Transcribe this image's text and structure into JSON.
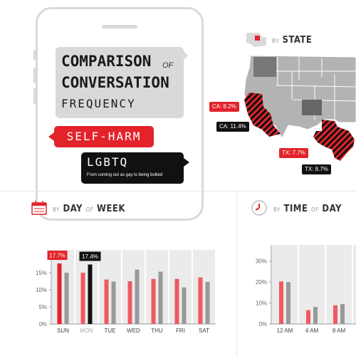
{
  "infographic": {
    "title_line1": "COMPARISON",
    "title_of": "OF",
    "title_line2": "CONVERSATION",
    "title_line3": "FREQUENCY",
    "selfharm_label": "SELF-HARM",
    "lgbtq_label": "LGBTQ",
    "lgbtq_sub": "From coming out as gay to being bullied"
  },
  "colors": {
    "selfharm": "#e2232a",
    "lgbtq": "#111111",
    "lgbtq_bar": "#999999",
    "panel": "#ebebeb"
  },
  "state_section": {
    "by": "BY",
    "title": "STATE",
    "icon": "state-map-icon",
    "tags": {
      "ca_selfharm": "CA: 8.2%",
      "ca_lgbtq": "CA: 11.4%",
      "tx_selfharm": "TX: 7.7%",
      "tx_lgbtq": "TX: 8.7%"
    }
  },
  "week_section": {
    "by": "BY",
    "title_a": "DAY",
    "of": "OF",
    "title_b": "WEEK",
    "icon": "calendar-icon"
  },
  "time_section": {
    "by": "BY",
    "title_a": "TIME",
    "of": "OF",
    "title_b": "DAY",
    "icon": "clock-icon"
  },
  "chart_data": [
    {
      "type": "bar",
      "categories": [
        "SUN",
        "MON",
        "TUE",
        "WED",
        "THU",
        "FRI",
        "SAT"
      ],
      "series": [
        {
          "values": [
            17.7,
            15.0,
            13.0,
            12.5,
            13.2,
            13.2,
            13.6
          ]
        },
        {
          "values": [
            15.0,
            17.4,
            12.4,
            15.9,
            15.3,
            10.7,
            12.3
          ]
        }
      ],
      "callouts": {
        "selfharm": "17.7%",
        "lgbtq": "17.4%"
      },
      "yticks": [
        "0%",
        "5%",
        "10%",
        "15%"
      ],
      "ylim": [
        0,
        20
      ],
      "grid": false
    },
    {
      "type": "bar",
      "categories": [
        "12 AM",
        "4 AM",
        "8 AM",
        "12 PM",
        "4 PM",
        "8 PM"
      ],
      "series": [
        {
          "values": [
            20.3,
            6.6,
            8.9,
            null,
            null,
            null
          ]
        },
        {
          "values": [
            20.0,
            8.1,
            9.5,
            null,
            null,
            null
          ]
        }
      ],
      "xticks_visible": [
        "12 AM",
        "4 AM",
        "8 AM"
      ],
      "yticks": [
        "0%",
        "10%",
        "20%",
        "30%"
      ],
      "ylim": [
        0,
        35
      ],
      "grid": false
    }
  ]
}
